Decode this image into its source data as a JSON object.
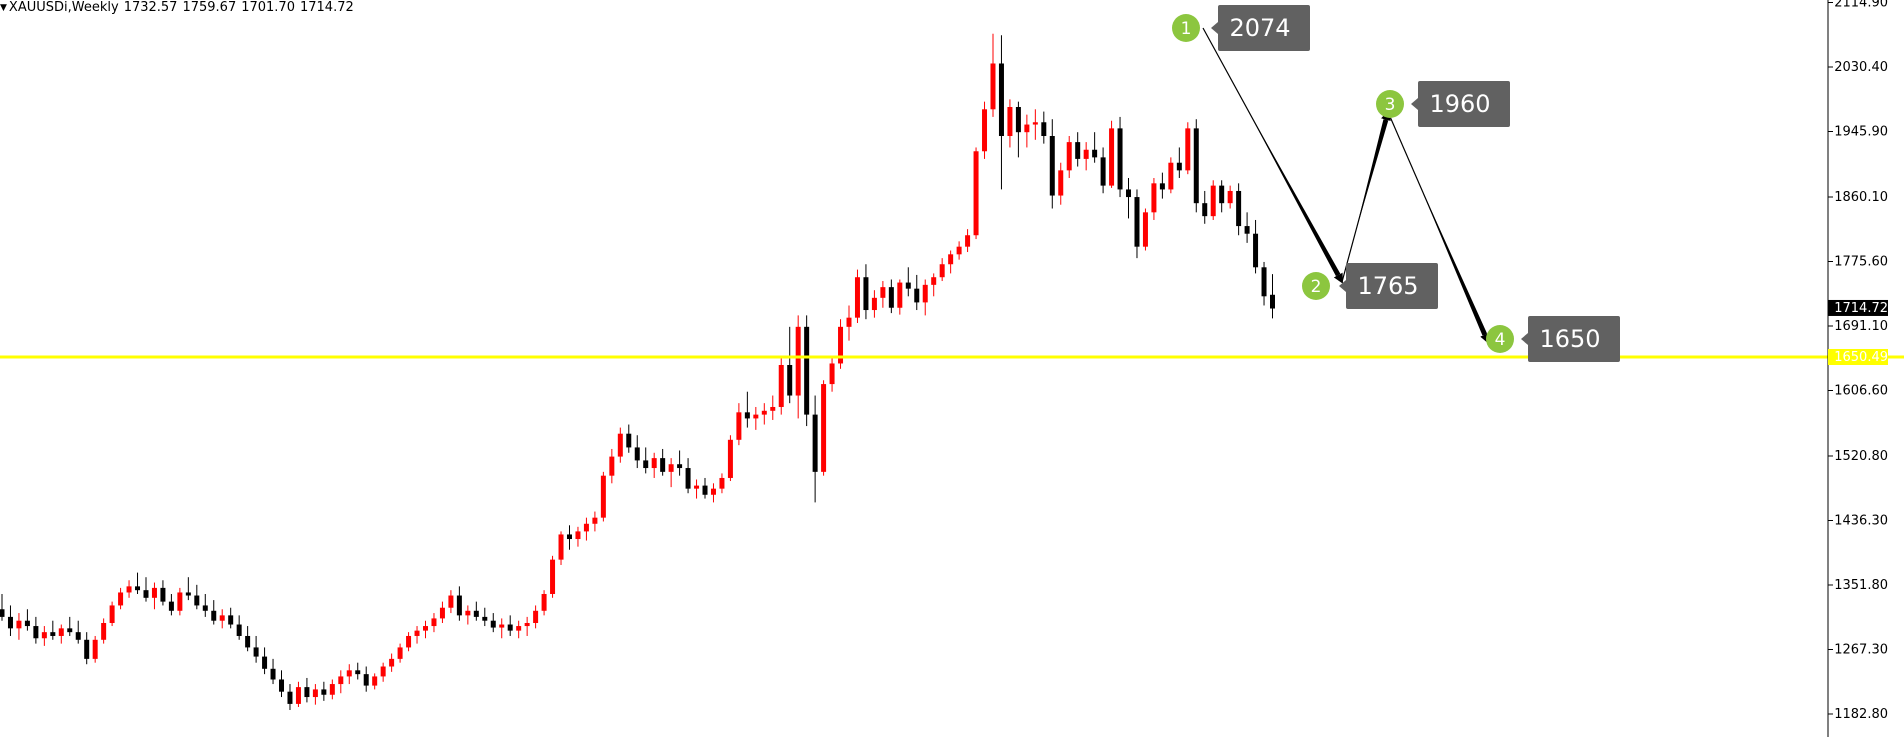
{
  "header": {
    "symbol": "XAUUSDi,Weekly",
    "open": "1732.57",
    "high": "1759.67",
    "low": "1701.70",
    "close": "1714.72"
  },
  "colors": {
    "bull": "#ff0000",
    "bear": "#000000",
    "level_line": "#ffff00",
    "marker": "#8cc63f",
    "label_box": "#616161",
    "price_tag": "#000000"
  },
  "chart_data": {
    "type": "candlestick",
    "title": "XAUUSDi,Weekly",
    "y_ticks": [
      2114.9,
      2030.4,
      1945.9,
      1860.1,
      1775.6,
      1691.1,
      1606.6,
      1520.8,
      1436.3,
      1351.8,
      1267.3,
      1182.8
    ],
    "ylim": [
      1160,
      2120
    ],
    "current_price": 1714.72,
    "horizontal_line": 1650.49,
    "ohlc": [
      [
        1320,
        1340,
        1305,
        1310
      ],
      [
        1310,
        1325,
        1285,
        1295
      ],
      [
        1295,
        1315,
        1280,
        1305
      ],
      [
        1305,
        1320,
        1292,
        1298
      ],
      [
        1298,
        1310,
        1275,
        1282
      ],
      [
        1282,
        1298,
        1272,
        1290
      ],
      [
        1290,
        1305,
        1280,
        1285
      ],
      [
        1285,
        1300,
        1275,
        1295
      ],
      [
        1295,
        1310,
        1285,
        1290
      ],
      [
        1290,
        1305,
        1275,
        1280
      ],
      [
        1280,
        1290,
        1248,
        1255
      ],
      [
        1255,
        1285,
        1250,
        1280
      ],
      [
        1280,
        1308,
        1275,
        1302
      ],
      [
        1302,
        1330,
        1298,
        1325
      ],
      [
        1325,
        1348,
        1320,
        1342
      ],
      [
        1342,
        1358,
        1335,
        1350
      ],
      [
        1350,
        1368,
        1340,
        1345
      ],
      [
        1345,
        1362,
        1330,
        1335
      ],
      [
        1335,
        1355,
        1320,
        1348
      ],
      [
        1348,
        1358,
        1325,
        1330
      ],
      [
        1330,
        1340,
        1312,
        1318
      ],
      [
        1318,
        1348,
        1312,
        1342
      ],
      [
        1342,
        1362,
        1332,
        1338
      ],
      [
        1338,
        1352,
        1320,
        1325
      ],
      [
        1325,
        1340,
        1310,
        1318
      ],
      [
        1318,
        1332,
        1300,
        1305
      ],
      [
        1305,
        1320,
        1295,
        1312
      ],
      [
        1312,
        1322,
        1295,
        1300
      ],
      [
        1300,
        1312,
        1280,
        1285
      ],
      [
        1285,
        1298,
        1265,
        1270
      ],
      [
        1270,
        1285,
        1250,
        1258
      ],
      [
        1258,
        1270,
        1235,
        1242
      ],
      [
        1242,
        1255,
        1222,
        1228
      ],
      [
        1228,
        1240,
        1205,
        1212
      ],
      [
        1212,
        1222,
        1188,
        1196
      ],
      [
        1196,
        1225,
        1192,
        1218
      ],
      [
        1218,
        1230,
        1198,
        1205
      ],
      [
        1205,
        1222,
        1195,
        1215
      ],
      [
        1215,
        1225,
        1200,
        1208
      ],
      [
        1208,
        1228,
        1202,
        1222
      ],
      [
        1222,
        1240,
        1210,
        1232
      ],
      [
        1232,
        1248,
        1222,
        1240
      ],
      [
        1240,
        1250,
        1228,
        1235
      ],
      [
        1235,
        1245,
        1212,
        1220
      ],
      [
        1220,
        1236,
        1215,
        1232
      ],
      [
        1232,
        1250,
        1225,
        1245
      ],
      [
        1245,
        1262,
        1238,
        1255
      ],
      [
        1255,
        1275,
        1250,
        1270
      ],
      [
        1270,
        1290,
        1265,
        1285
      ],
      [
        1285,
        1298,
        1275,
        1292
      ],
      [
        1292,
        1305,
        1282,
        1298
      ],
      [
        1298,
        1315,
        1290,
        1308
      ],
      [
        1308,
        1330,
        1302,
        1322
      ],
      [
        1322,
        1345,
        1315,
        1338
      ],
      [
        1338,
        1350,
        1305,
        1312
      ],
      [
        1312,
        1325,
        1300,
        1318
      ],
      [
        1318,
        1330,
        1305,
        1310
      ],
      [
        1310,
        1322,
        1298,
        1305
      ],
      [
        1305,
        1315,
        1290,
        1296
      ],
      [
        1296,
        1308,
        1282,
        1300
      ],
      [
        1300,
        1312,
        1285,
        1292
      ],
      [
        1292,
        1305,
        1282,
        1298
      ],
      [
        1298,
        1310,
        1285,
        1302
      ],
      [
        1302,
        1325,
        1295,
        1318
      ],
      [
        1318,
        1345,
        1312,
        1340
      ],
      [
        1340,
        1390,
        1335,
        1385
      ],
      [
        1385,
        1422,
        1378,
        1418
      ],
      [
        1418,
        1430,
        1398,
        1412
      ],
      [
        1412,
        1428,
        1402,
        1422
      ],
      [
        1422,
        1440,
        1410,
        1432
      ],
      [
        1432,
        1448,
        1422,
        1440
      ],
      [
        1440,
        1500,
        1435,
        1495
      ],
      [
        1495,
        1530,
        1485,
        1520
      ],
      [
        1520,
        1558,
        1512,
        1550
      ],
      [
        1550,
        1562,
        1525,
        1532
      ],
      [
        1532,
        1548,
        1505,
        1515
      ],
      [
        1515,
        1532,
        1498,
        1505
      ],
      [
        1505,
        1525,
        1492,
        1518
      ],
      [
        1518,
        1530,
        1495,
        1500
      ],
      [
        1500,
        1518,
        1480,
        1510
      ],
      [
        1510,
        1528,
        1495,
        1505
      ],
      [
        1505,
        1518,
        1472,
        1478
      ],
      [
        1478,
        1490,
        1465,
        1482
      ],
      [
        1482,
        1492,
        1465,
        1470
      ],
      [
        1470,
        1485,
        1460,
        1478
      ],
      [
        1478,
        1498,
        1472,
        1492
      ],
      [
        1492,
        1548,
        1488,
        1542
      ],
      [
        1542,
        1590,
        1535,
        1578
      ],
      [
        1578,
        1605,
        1558,
        1570
      ],
      [
        1570,
        1585,
        1555,
        1575
      ],
      [
        1575,
        1590,
        1562,
        1580
      ],
      [
        1580,
        1600,
        1568,
        1585
      ],
      [
        1585,
        1650,
        1575,
        1640
      ],
      [
        1640,
        1690,
        1590,
        1600
      ],
      [
        1600,
        1705,
        1570,
        1690
      ],
      [
        1690,
        1705,
        1560,
        1575
      ],
      [
        1575,
        1600,
        1460,
        1500
      ],
      [
        1500,
        1620,
        1495,
        1615
      ],
      [
        1615,
        1650,
        1605,
        1642
      ],
      [
        1642,
        1700,
        1635,
        1690
      ],
      [
        1690,
        1718,
        1672,
        1702
      ],
      [
        1702,
        1765,
        1695,
        1755
      ],
      [
        1755,
        1772,
        1700,
        1712
      ],
      [
        1712,
        1738,
        1702,
        1728
      ],
      [
        1728,
        1750,
        1715,
        1742
      ],
      [
        1742,
        1752,
        1708,
        1715
      ],
      [
        1715,
        1752,
        1706,
        1748
      ],
      [
        1748,
        1768,
        1730,
        1740
      ],
      [
        1740,
        1758,
        1712,
        1722
      ],
      [
        1722,
        1752,
        1705,
        1745
      ],
      [
        1745,
        1760,
        1730,
        1755
      ],
      [
        1755,
        1780,
        1750,
        1772
      ],
      [
        1772,
        1790,
        1760,
        1785
      ],
      [
        1785,
        1802,
        1778,
        1795
      ],
      [
        1795,
        1818,
        1788,
        1810
      ],
      [
        1810,
        1925,
        1805,
        1920
      ],
      [
        1920,
        1985,
        1910,
        1975
      ],
      [
        1975,
        2074,
        1965,
        2035
      ],
      [
        2035,
        2072,
        1870,
        1940
      ],
      [
        1940,
        1988,
        1925,
        1978
      ],
      [
        1978,
        1985,
        1912,
        1945
      ],
      [
        1945,
        1968,
        1925,
        1955
      ],
      [
        1955,
        1975,
        1935,
        1958
      ],
      [
        1958,
        1972,
        1930,
        1940
      ],
      [
        1940,
        1962,
        1845,
        1862
      ],
      [
        1862,
        1905,
        1850,
        1895
      ],
      [
        1895,
        1940,
        1885,
        1932
      ],
      [
        1932,
        1945,
        1900,
        1910
      ],
      [
        1910,
        1932,
        1895,
        1922
      ],
      [
        1922,
        1945,
        1905,
        1912
      ],
      [
        1912,
        1925,
        1865,
        1875
      ],
      [
        1875,
        1960,
        1872,
        1950
      ],
      [
        1950,
        1965,
        1860,
        1870
      ],
      [
        1870,
        1885,
        1832,
        1860
      ],
      [
        1860,
        1870,
        1780,
        1795
      ],
      [
        1795,
        1845,
        1790,
        1840
      ],
      [
        1840,
        1885,
        1830,
        1878
      ],
      [
        1878,
        1892,
        1858,
        1870
      ],
      [
        1870,
        1912,
        1865,
        1905
      ],
      [
        1905,
        1925,
        1885,
        1895
      ],
      [
        1895,
        1958,
        1890,
        1950
      ],
      [
        1950,
        1962,
        1840,
        1852
      ],
      [
        1852,
        1868,
        1825,
        1835
      ],
      [
        1835,
        1882,
        1830,
        1875
      ],
      [
        1875,
        1882,
        1840,
        1852
      ],
      [
        1852,
        1875,
        1845,
        1868
      ],
      [
        1868,
        1878,
        1810,
        1822
      ],
      [
        1822,
        1840,
        1800,
        1812
      ],
      [
        1812,
        1830,
        1760,
        1768
      ],
      [
        1768,
        1775,
        1718,
        1730
      ],
      [
        1732,
        1759,
        1701,
        1714
      ]
    ]
  },
  "axis_tags": {
    "current_price": "1714.72",
    "level": "1650.49"
  },
  "wave_points": [
    {
      "label": "1",
      "price": 2074,
      "text": "2074"
    },
    {
      "label": "2",
      "price": 1765,
      "text": "1765"
    },
    {
      "label": "3",
      "price": 1960,
      "text": "1960"
    },
    {
      "label": "4",
      "price": 1650,
      "text": "1650"
    }
  ]
}
